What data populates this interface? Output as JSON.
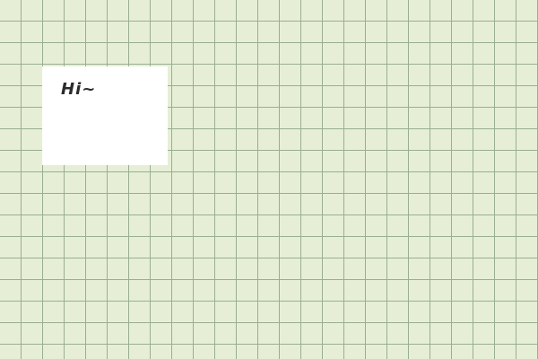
{
  "canvas": {
    "background_color": "#e6efd6",
    "grid_line_color": "#9aae92"
  },
  "note": {
    "text": "Hi~",
    "background_color": "#ffffff",
    "text_color": "#2b2b2b"
  }
}
